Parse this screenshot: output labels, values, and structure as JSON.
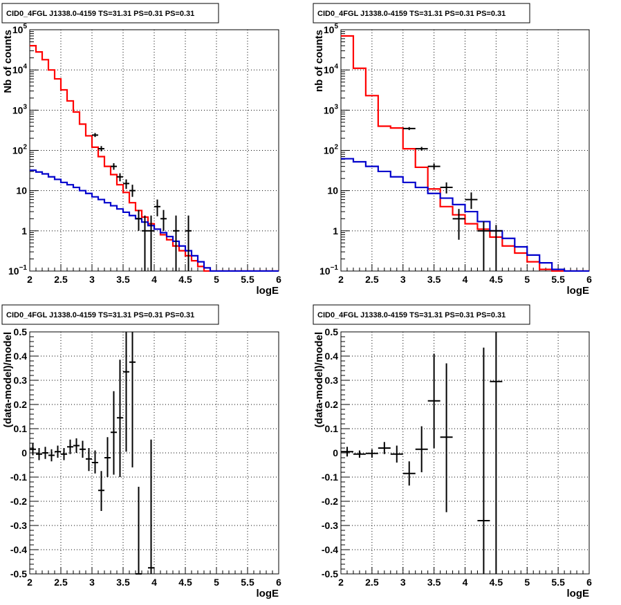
{
  "colors": {
    "data": "#000000",
    "model_total": "#ff0000",
    "model_background": "#0000cc",
    "grid": "#000000"
  },
  "chart_data": [
    {
      "type": "histogram",
      "title": "CID0_4FGL J1338.0-4159 TS=31.31 PS=0.31 PS=0.31",
      "xlabel": "logE",
      "ylabel": "Nb of counts",
      "xlim": [
        2,
        6
      ],
      "ylim": [
        0.1,
        100000
      ],
      "log_y": true,
      "grid": true,
      "x_ticks": [
        "2",
        "2.5",
        "3",
        "3.5",
        "4",
        "4.5",
        "5",
        "5.5",
        "6"
      ],
      "y_ticks": [
        {
          "value": 0.1,
          "label": "10",
          "exp": "−1"
        },
        {
          "value": 1,
          "label": "1",
          "exp": ""
        },
        {
          "value": 10,
          "label": "10",
          "exp": ""
        },
        {
          "value": 100,
          "label": "10",
          "exp": "2"
        },
        {
          "value": 1000,
          "label": "10",
          "exp": "3"
        },
        {
          "value": 10000,
          "label": "10",
          "exp": "4"
        },
        {
          "value": 100000,
          "label": "10",
          "exp": "5"
        }
      ],
      "series": [
        {
          "role": "model_total",
          "style": "step",
          "edges": [
            2.0,
            2.1,
            2.2,
            2.3,
            2.4,
            2.5,
            2.6,
            2.7,
            2.8,
            2.9,
            3.0,
            3.1,
            3.2,
            3.3,
            3.4,
            3.5,
            3.6,
            3.7,
            3.8,
            3.9,
            4.0,
            4.1,
            4.2,
            4.3,
            4.4,
            4.5,
            4.6,
            4.7,
            4.8,
            4.9,
            5.0,
            5.1,
            5.2,
            5.3,
            5.4,
            5.5,
            5.6,
            5.7,
            5.8,
            5.9,
            6.0
          ],
          "values": [
            40000,
            28000,
            18000,
            10000,
            6000,
            3200,
            1700,
            900,
            450,
            230,
            120,
            70,
            40,
            25,
            14,
            9,
            5,
            3.2,
            2.2,
            1.5,
            1.1,
            0.8,
            0.6,
            0.42,
            0.32,
            0.24,
            0.18,
            0.13,
            0.1,
            0.1,
            0.1,
            0.1,
            0.1,
            0.1,
            0.1,
            0.1,
            0.1,
            0.1,
            0.1,
            0.1
          ]
        },
        {
          "role": "model_background",
          "style": "step",
          "edges": [
            2.0,
            2.1,
            2.2,
            2.3,
            2.4,
            2.5,
            2.6,
            2.7,
            2.8,
            2.9,
            3.0,
            3.1,
            3.2,
            3.3,
            3.4,
            3.5,
            3.6,
            3.7,
            3.8,
            3.9,
            4.0,
            4.1,
            4.2,
            4.3,
            4.4,
            4.5,
            4.6,
            4.7,
            4.8,
            4.9,
            5.0,
            5.1,
            5.2,
            5.3,
            5.4,
            5.5,
            5.6,
            5.7,
            5.8,
            5.9,
            6.0
          ],
          "values": [
            32,
            29,
            26,
            22,
            19,
            16,
            14,
            12,
            10,
            8.5,
            7,
            6,
            5,
            4.2,
            3.5,
            2.9,
            2.4,
            2.0,
            1.65,
            1.35,
            1.1,
            0.9,
            0.72,
            0.55,
            0.42,
            0.32,
            0.24,
            0.17,
            0.12,
            0.1,
            0.1,
            0.1,
            0.1,
            0.1,
            0.1,
            0.1,
            0.1,
            0.1,
            0.1,
            0.1
          ]
        },
        {
          "role": "data",
          "style": "errorbar",
          "xerr": 0.05,
          "points": [
            {
              "x": 3.05,
              "y": 240,
              "lo": 215,
              "hi": 270
            },
            {
              "x": 3.15,
              "y": 110,
              "lo": 95,
              "hi": 128
            },
            {
              "x": 3.35,
              "y": 40,
              "lo": 33,
              "hi": 48
            },
            {
              "x": 3.45,
              "y": 22,
              "lo": 17,
              "hi": 27
            },
            {
              "x": 3.55,
              "y": 15,
              "lo": 11,
              "hi": 19
            },
            {
              "x": 3.65,
              "y": 10,
              "lo": 7,
              "hi": 14
            },
            {
              "x": 3.75,
              "y": 2,
              "lo": 1,
              "hi": 3.3
            },
            {
              "x": 3.85,
              "y": 1,
              "lo": 0.1,
              "hi": 2.4
            },
            {
              "x": 3.95,
              "y": 1,
              "lo": 0.1,
              "hi": 2.4
            },
            {
              "x": 4.05,
              "y": 4,
              "lo": 2.3,
              "hi": 6
            },
            {
              "x": 4.15,
              "y": 2,
              "lo": 1,
              "hi": 3.3
            },
            {
              "x": 4.35,
              "y": 1,
              "lo": 0.1,
              "hi": 2.4
            },
            {
              "x": 4.55,
              "y": 1,
              "lo": 0.1,
              "hi": 2.4
            }
          ]
        }
      ]
    },
    {
      "type": "histogram",
      "title": "CID0_4FGL J1338.0-4159 TS=31.31 PS=0.31 PS=0.31",
      "xlabel": "logE",
      "ylabel": "nb of counts",
      "xlim": [
        2,
        6
      ],
      "ylim": [
        0.1,
        100000
      ],
      "log_y": true,
      "grid": true,
      "x_ticks": [
        "2",
        "2.5",
        "3",
        "3.5",
        "4",
        "4.5",
        "5",
        "5.5",
        "6"
      ],
      "y_ticks": [
        {
          "value": 0.1,
          "label": "10",
          "exp": "−1"
        },
        {
          "value": 1,
          "label": "1",
          "exp": ""
        },
        {
          "value": 10,
          "label": "10",
          "exp": ""
        },
        {
          "value": 100,
          "label": "10",
          "exp": "2"
        },
        {
          "value": 1000,
          "label": "10",
          "exp": "3"
        },
        {
          "value": 10000,
          "label": "10",
          "exp": "4"
        },
        {
          "value": 100000,
          "label": "10",
          "exp": "5"
        }
      ],
      "series": [
        {
          "role": "model_total",
          "style": "step",
          "edges": [
            2.0,
            2.2,
            2.4,
            2.6,
            2.8,
            3.0,
            3.2,
            3.4,
            3.6,
            3.8,
            4.0,
            4.2,
            4.4,
            4.6,
            4.8,
            5.0,
            5.2,
            5.4,
            5.6,
            5.8,
            6.0
          ],
          "values": [
            70000,
            11000,
            2300,
            400,
            360,
            110,
            38,
            11,
            4,
            2.5,
            1.5,
            1.1,
            0.7,
            0.42,
            0.28,
            0.17,
            0.11,
            0.1,
            0.1,
            0.1
          ]
        },
        {
          "role": "model_background",
          "style": "step",
          "edges": [
            2.0,
            2.2,
            2.4,
            2.6,
            2.8,
            3.0,
            3.2,
            3.4,
            3.6,
            3.8,
            4.0,
            4.2,
            4.4,
            4.6,
            4.8,
            5.0,
            5.2,
            5.4,
            5.6,
            5.8,
            6.0
          ],
          "values": [
            62,
            52,
            40,
            30,
            22,
            16,
            12,
            8.5,
            6.5,
            4.5,
            3.0,
            1.7,
            1.0,
            0.65,
            0.4,
            0.25,
            0.16,
            0.11,
            0.1,
            0.1
          ]
        },
        {
          "role": "data",
          "style": "errorbar",
          "xerr": 0.1,
          "points": [
            {
              "x": 3.1,
              "y": 350,
              "lo": 320,
              "hi": 380
            },
            {
              "x": 3.3,
              "y": 110,
              "lo": 98,
              "hi": 122
            },
            {
              "x": 3.5,
              "y": 40,
              "lo": 33,
              "hi": 47
            },
            {
              "x": 3.7,
              "y": 12,
              "lo": 8.5,
              "hi": 16
            },
            {
              "x": 3.9,
              "y": 2,
              "lo": 0.6,
              "hi": 3.5
            },
            {
              "x": 4.1,
              "y": 6,
              "lo": 3.5,
              "hi": 9
            },
            {
              "x": 4.3,
              "y": 1,
              "lo": 0.1,
              "hi": 1.7
            },
            {
              "x": 4.5,
              "y": 1,
              "lo": 0.1,
              "hi": 1.4
            }
          ]
        }
      ]
    },
    {
      "type": "scatter",
      "title": "CID0_4FGL J1338.0-4159 TS=31.31 PS=0.31 PS=0.31",
      "xlabel": "logE",
      "ylabel": "(data-model)/model",
      "xlim": [
        2,
        6
      ],
      "ylim": [
        -0.5,
        0.5
      ],
      "log_y": false,
      "grid": true,
      "x_ticks": [
        "2",
        "2.5",
        "3",
        "3.5",
        "4",
        "4.5",
        "5",
        "5.5",
        "6"
      ],
      "y_ticks": [
        {
          "value": 0.5,
          "label": "0.5",
          "exp": ""
        },
        {
          "value": 0.4,
          "label": "0.4",
          "exp": ""
        },
        {
          "value": 0.3,
          "label": "0.3",
          "exp": ""
        },
        {
          "value": 0.2,
          "label": "0.2",
          "exp": ""
        },
        {
          "value": 0.1,
          "label": "0.1",
          "exp": ""
        },
        {
          "value": 0,
          "label": "0",
          "exp": ""
        },
        {
          "value": -0.1,
          "label": "-0.1",
          "exp": ""
        },
        {
          "value": -0.2,
          "label": "-0.2",
          "exp": ""
        },
        {
          "value": -0.3,
          "label": "-0.3",
          "exp": ""
        },
        {
          "value": -0.4,
          "label": "-0.4",
          "exp": ""
        },
        {
          "value": -0.5,
          "label": "-0.5",
          "exp": ""
        }
      ],
      "series": [
        {
          "role": "data",
          "style": "errorbar",
          "xerr": 0.05,
          "points": [
            {
              "x": 2.05,
              "y": 0.015,
              "lo": -0.01,
              "hi": 0.04
            },
            {
              "x": 2.15,
              "y": -0.005,
              "lo": -0.03,
              "hi": 0.02
            },
            {
              "x": 2.25,
              "y": 0.0,
              "lo": -0.025,
              "hi": 0.025
            },
            {
              "x": 2.35,
              "y": -0.01,
              "lo": -0.035,
              "hi": 0.015
            },
            {
              "x": 2.45,
              "y": 0.005,
              "lo": -0.02,
              "hi": 0.03
            },
            {
              "x": 2.55,
              "y": -0.005,
              "lo": -0.03,
              "hi": 0.02
            },
            {
              "x": 2.65,
              "y": 0.025,
              "lo": -0.005,
              "hi": 0.055
            },
            {
              "x": 2.75,
              "y": 0.03,
              "lo": 0.0,
              "hi": 0.06
            },
            {
              "x": 2.85,
              "y": 0.015,
              "lo": -0.02,
              "hi": 0.05
            },
            {
              "x": 2.95,
              "y": -0.025,
              "lo": -0.075,
              "hi": 0.02
            },
            {
              "x": 3.05,
              "y": -0.04,
              "lo": -0.085,
              "hi": 0.01
            },
            {
              "x": 3.15,
              "y": -0.155,
              "lo": -0.24,
              "hi": -0.075
            },
            {
              "x": 3.25,
              "y": -0.02,
              "lo": -0.1,
              "hi": 0.065
            },
            {
              "x": 3.35,
              "y": 0.085,
              "lo": -0.09,
              "hi": 0.255
            },
            {
              "x": 3.45,
              "y": 0.145,
              "lo": -0.1,
              "hi": 0.385
            },
            {
              "x": 3.55,
              "y": 0.335,
              "lo": 0.005,
              "hi": 0.5
            },
            {
              "x": 3.65,
              "y": 0.375,
              "lo": -0.06,
              "hi": 0.5
            },
            {
              "x": 3.75,
              "y": -0.5,
              "lo": -0.5,
              "hi": -0.14
            },
            {
              "x": 3.95,
              "y": -0.475,
              "lo": -0.5,
              "hi": 0.055
            }
          ]
        }
      ]
    },
    {
      "type": "scatter",
      "title": "CID0_4FGL J1338.0-4159 TS=31.31 PS=0.31 PS=0.31",
      "xlabel": "logE",
      "ylabel": "(data-model)/model",
      "xlim": [
        2,
        6
      ],
      "ylim": [
        -0.5,
        0.5
      ],
      "log_y": false,
      "grid": true,
      "x_ticks": [
        "2",
        "2.5",
        "3",
        "3.5",
        "4",
        "4.5",
        "5",
        "5.5",
        "6"
      ],
      "y_ticks": [
        {
          "value": 0.5,
          "label": "0.5",
          "exp": ""
        },
        {
          "value": 0.4,
          "label": "0.4",
          "exp": ""
        },
        {
          "value": 0.3,
          "label": "0.3",
          "exp": ""
        },
        {
          "value": 0.2,
          "label": "0.2",
          "exp": ""
        },
        {
          "value": 0.1,
          "label": "0.1",
          "exp": ""
        },
        {
          "value": 0,
          "label": "0",
          "exp": ""
        },
        {
          "value": -0.1,
          "label": "-0.1",
          "exp": ""
        },
        {
          "value": -0.2,
          "label": "-0.2",
          "exp": ""
        },
        {
          "value": -0.3,
          "label": "-0.3",
          "exp": ""
        },
        {
          "value": -0.4,
          "label": "-0.4",
          "exp": ""
        },
        {
          "value": -0.5,
          "label": "-0.5",
          "exp": ""
        }
      ],
      "series": [
        {
          "role": "data",
          "style": "errorbar",
          "xerr": 0.1,
          "points": [
            {
              "x": 2.1,
              "y": 0.005,
              "lo": -0.015,
              "hi": 0.025
            },
            {
              "x": 2.3,
              "y": -0.005,
              "lo": -0.02,
              "hi": 0.01
            },
            {
              "x": 2.5,
              "y": -0.002,
              "lo": -0.02,
              "hi": 0.015
            },
            {
              "x": 2.7,
              "y": 0.02,
              "lo": -0.005,
              "hi": 0.045
            },
            {
              "x": 2.9,
              "y": -0.005,
              "lo": -0.04,
              "hi": 0.03
            },
            {
              "x": 3.1,
              "y": -0.085,
              "lo": -0.135,
              "hi": -0.035
            },
            {
              "x": 3.3,
              "y": 0.015,
              "lo": -0.08,
              "hi": 0.11
            },
            {
              "x": 3.5,
              "y": 0.215,
              "lo": 0.02,
              "hi": 0.41
            },
            {
              "x": 3.7,
              "y": 0.065,
              "lo": -0.245,
              "hi": 0.37
            },
            {
              "x": 4.3,
              "y": -0.28,
              "lo": -0.5,
              "hi": 0.435
            },
            {
              "x": 4.5,
              "y": 0.295,
              "lo": -0.5,
              "hi": 0.5
            }
          ]
        }
      ]
    }
  ]
}
